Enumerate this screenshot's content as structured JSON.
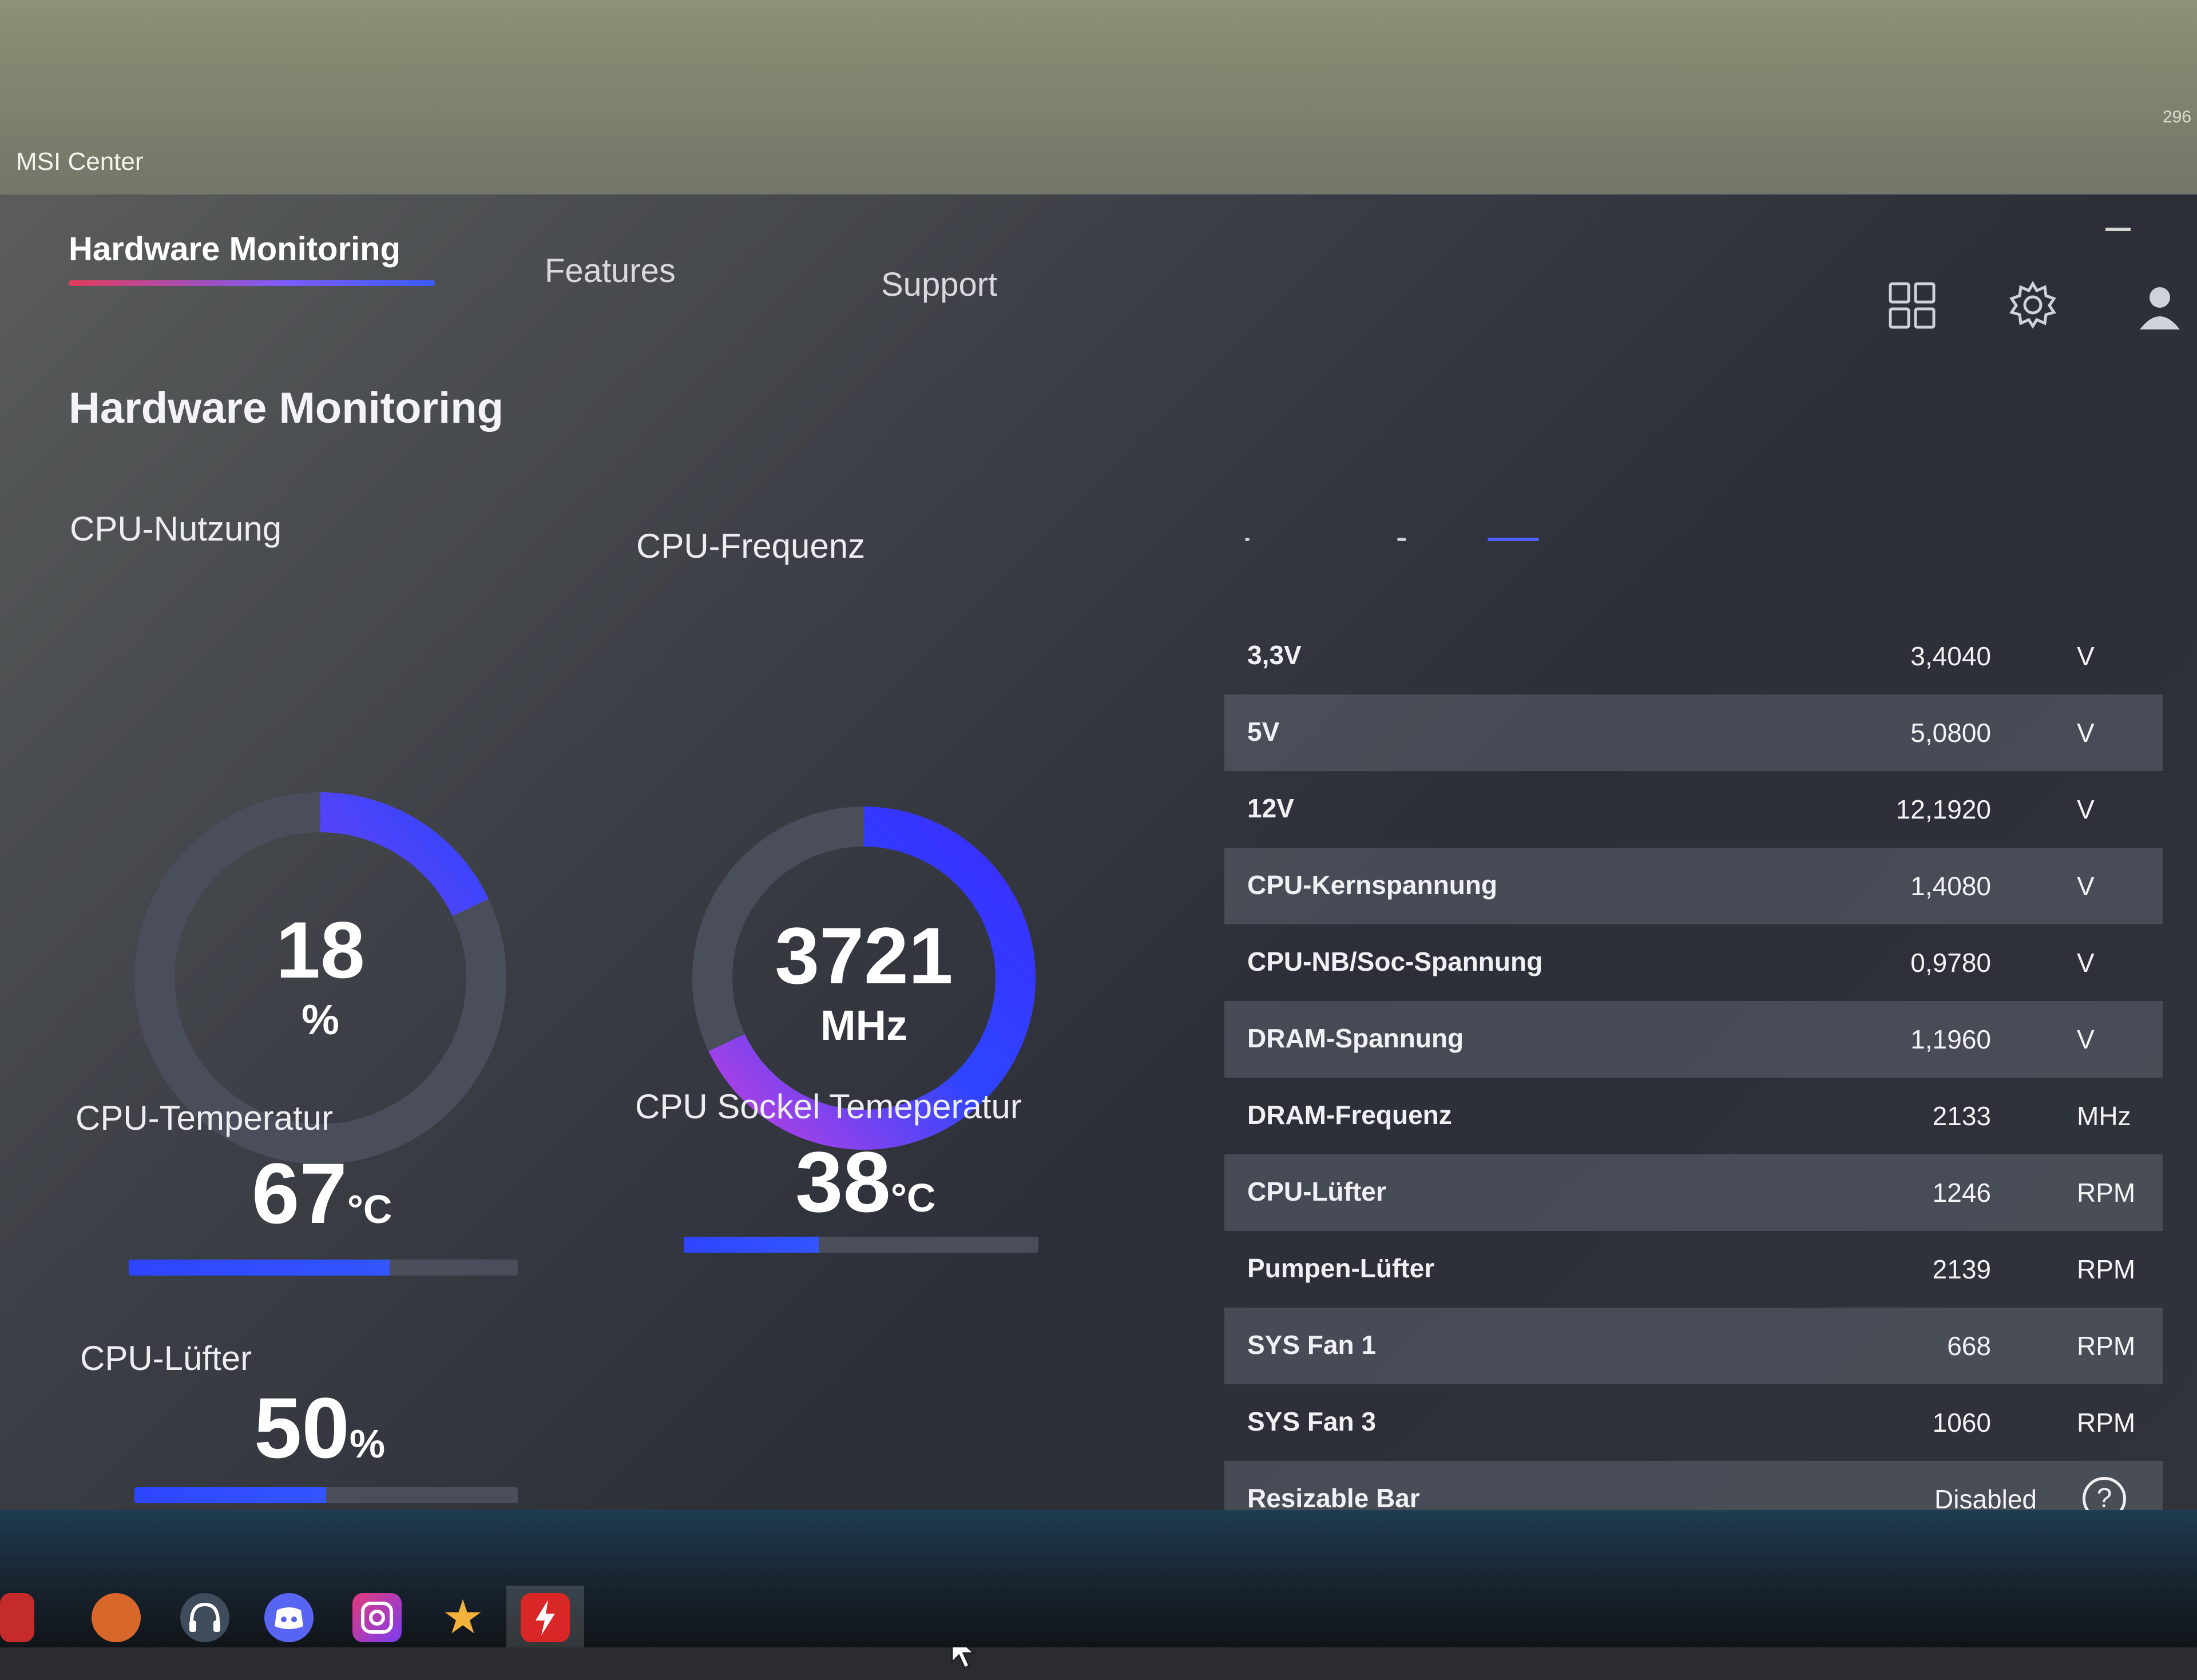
{
  "app": {
    "title": "MSI Center",
    "corner_text": "296"
  },
  "tabs": [
    {
      "label": "Hardware Monitoring",
      "active": true
    },
    {
      "label": "Features",
      "active": false
    },
    {
      "label": "Support",
      "active": false
    }
  ],
  "toolbar_icons": [
    "grid-icon",
    "gear-icon",
    "user-icon"
  ],
  "page_title": "Hardware Monitoring",
  "cpu_usage": {
    "label": "CPU-Nutzung",
    "value": "18",
    "unit": "%",
    "fraction": 0.18
  },
  "cpu_frequency": {
    "label": "CPU-Frequenz",
    "value": "3721",
    "unit": "MHz",
    "fraction": 0.68
  },
  "cpu_temperature": {
    "label": "CPU-Temperatur",
    "value": "67",
    "unit": "°C",
    "fraction": 0.67
  },
  "socket_temperature": {
    "label": "CPU Sockel Temeperatur",
    "value": "38",
    "unit": "°C",
    "fraction": 0.38
  },
  "cpu_fan": {
    "label": "CPU-Lüfter",
    "value": "50",
    "unit": "%",
    "fraction": 0.5
  },
  "sensors": [
    {
      "name": "3,3V",
      "value": "3,4040",
      "unit": "V"
    },
    {
      "name": "5V",
      "value": "5,0800",
      "unit": "V"
    },
    {
      "name": "12V",
      "value": "12,1920",
      "unit": "V"
    },
    {
      "name": "CPU-Kernspannung",
      "value": "1,4080",
      "unit": "V"
    },
    {
      "name": "CPU-NB/Soc-Spannung",
      "value": "0,9780",
      "unit": "V"
    },
    {
      "name": "DRAM-Spannung",
      "value": "1,1960",
      "unit": "V"
    },
    {
      "name": "DRAM-Frequenz",
      "value": "2133",
      "unit": "MHz"
    },
    {
      "name": "CPU-Lüfter",
      "value": "1246",
      "unit": "RPM"
    },
    {
      "name": "Pumpen-Lüfter",
      "value": "2139",
      "unit": "RPM"
    },
    {
      "name": "SYS Fan 1",
      "value": "668",
      "unit": "RPM"
    },
    {
      "name": "SYS Fan 3",
      "value": "1060",
      "unit": "RPM"
    },
    {
      "name": "Resizable Bar",
      "value": "Disabled",
      "unit": ""
    }
  ],
  "help_symbol": "?",
  "colors": {
    "accent_blue": "#2d45ff",
    "accent_pink": "#c040e0",
    "track": "#4a4e5a"
  },
  "taskbar_icons": [
    "start-icon",
    "browser-icon",
    "headset-icon",
    "discord-icon",
    "camera-icon",
    "star-icon",
    "msi-center-icon"
  ]
}
